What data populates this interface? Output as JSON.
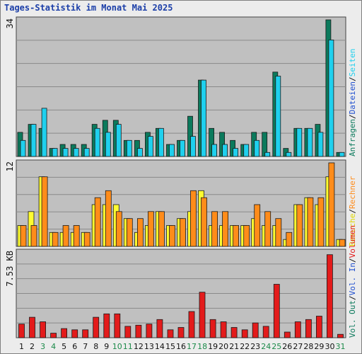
{
  "title": "Tages-Statistik im Monat Mai 2025",
  "colors": {
    "anfragen": "#0b7a5c",
    "dateien": "#1fd0ee",
    "seiten": "#1fd0ee",
    "besuche": "#fffc30",
    "rechner": "#ff8c1a",
    "volumen": "#e31b1b",
    "plot_bg": "#c0c0c0",
    "grid": "#8a8a8a",
    "weekend_day": "#1c8a4a",
    "normal_day": "#111111"
  },
  "legend": {
    "top": [
      {
        "text": "Anfragen",
        "color": "#0b7a5c"
      },
      {
        "text": "Dateien",
        "color": "#1f4fd0"
      },
      {
        "text": "Seiten",
        "color": "#1fd0ee"
      }
    ],
    "mid": [
      {
        "text": "Besuche",
        "color": "#e0d800"
      },
      {
        "text": "Rechner",
        "color": "#ff8c1a"
      }
    ],
    "bot": [
      {
        "text": "Vol. Out",
        "color": "#0b7a5c"
      },
      {
        "text": "Vol. In",
        "color": "#1f4fd0"
      },
      {
        "text": "Volumen",
        "color": "#e31b1b"
      }
    ],
    "sep": "/"
  },
  "axis_max_labels": {
    "top": "34",
    "mid": "12",
    "bot": "7.53 KB"
  },
  "chart_data": [
    {
      "type": "bar",
      "panel": "top",
      "ylim": [
        0,
        34
      ],
      "x": [
        1,
        2,
        3,
        4,
        5,
        6,
        7,
        8,
        9,
        10,
        11,
        12,
        13,
        14,
        15,
        16,
        17,
        18,
        19,
        20,
        21,
        22,
        23,
        24,
        25,
        26,
        27,
        28,
        29,
        30,
        31
      ],
      "series": [
        {
          "name": "Anfragen",
          "values": [
            6,
            8,
            7,
            2,
            3,
            3,
            3,
            8,
            9,
            9,
            4,
            4,
            6,
            7,
            3,
            4,
            10,
            19,
            7,
            6,
            4,
            3,
            6,
            6,
            21,
            2,
            7,
            7,
            8,
            34,
            1
          ]
        },
        {
          "name": "Dateien",
          "values": [
            4,
            8,
            12,
            2,
            2,
            2,
            2,
            7,
            6,
            8,
            4,
            2,
            5,
            7,
            3,
            4,
            5,
            19,
            3,
            3,
            2,
            3,
            4,
            1,
            20,
            1,
            7,
            7,
            6,
            29,
            1
          ]
        }
      ]
    },
    {
      "type": "bar",
      "panel": "mid",
      "ylim": [
        0,
        12
      ],
      "x": [
        1,
        2,
        3,
        4,
        5,
        6,
        7,
        8,
        9,
        10,
        11,
        12,
        13,
        14,
        15,
        16,
        17,
        18,
        19,
        20,
        21,
        22,
        23,
        24,
        25,
        26,
        27,
        28,
        29,
        30,
        31
      ],
      "series": [
        {
          "name": "Besuche",
          "values": [
            3,
            5,
            10,
            2,
            2,
            2,
            2,
            6,
            6,
            6,
            4,
            2,
            3,
            5,
            3,
            4,
            5,
            8,
            3,
            3,
            3,
            3,
            4,
            3,
            3,
            1,
            6,
            7,
            6,
            10,
            1
          ]
        },
        {
          "name": "Rechner",
          "values": [
            3,
            3,
            10,
            2,
            3,
            3,
            2,
            7,
            8,
            5,
            4,
            4,
            5,
            5,
            3,
            4,
            8,
            7,
            5,
            5,
            3,
            3,
            6,
            5,
            4,
            2,
            6,
            7,
            7,
            12,
            1
          ]
        }
      ]
    },
    {
      "type": "bar",
      "panel": "bot",
      "ylim": [
        0,
        7.53
      ],
      "yunit": "KB",
      "x": [
        1,
        2,
        3,
        4,
        5,
        6,
        7,
        8,
        9,
        10,
        11,
        12,
        13,
        14,
        15,
        16,
        17,
        18,
        19,
        20,
        21,
        22,
        23,
        24,
        25,
        26,
        27,
        28,
        29,
        30,
        31
      ],
      "series": [
        {
          "name": "Volumen",
          "values": [
            1.2,
            1.8,
            1.4,
            0.4,
            0.8,
            0.7,
            0.7,
            1.8,
            2.1,
            2.1,
            1.0,
            1.1,
            1.2,
            1.6,
            0.7,
            0.9,
            2.3,
            4.0,
            1.6,
            1.4,
            0.9,
            0.7,
            1.3,
            1.0,
            4.7,
            0.5,
            1.4,
            1.6,
            1.9,
            7.3,
            0.3
          ]
        }
      ]
    }
  ],
  "weekend_days": [
    3,
    4,
    10,
    11,
    17,
    18,
    24,
    25,
    31
  ]
}
